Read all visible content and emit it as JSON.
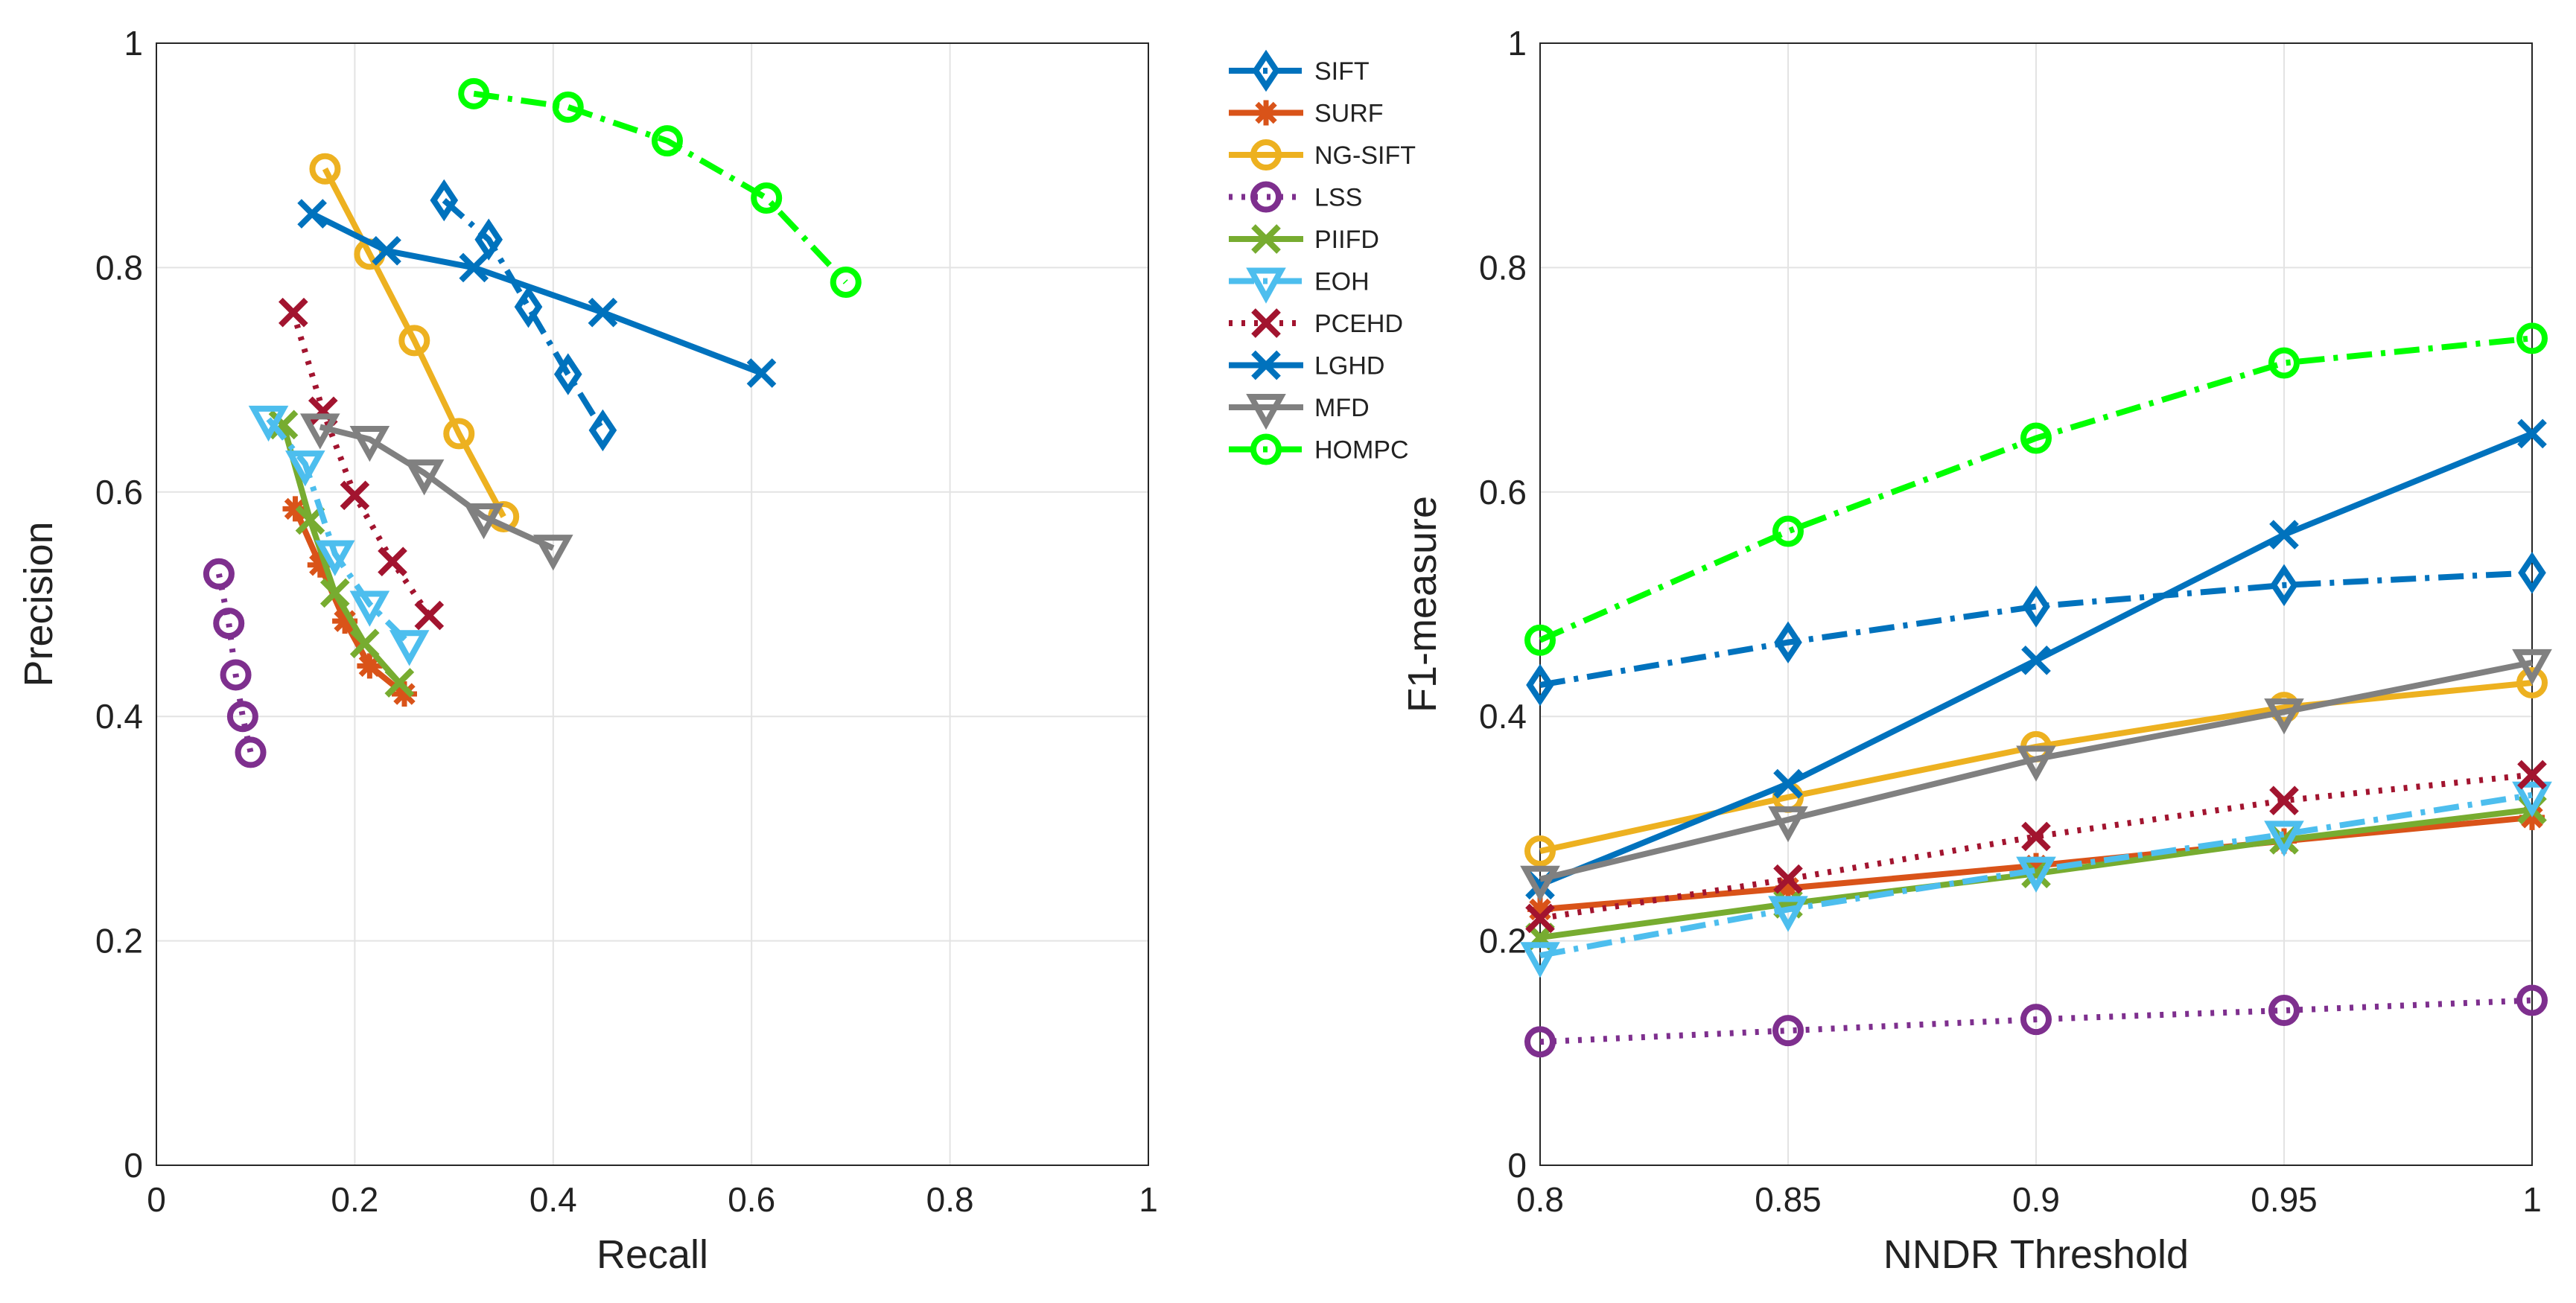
{
  "chart_data": [
    {
      "type": "line",
      "xlabel": "Recall",
      "ylabel": "Precision",
      "xlim": [
        0,
        1
      ],
      "ylim": [
        0,
        1
      ],
      "xticks": [
        "0",
        "0.2",
        "0.4",
        "0.6",
        "0.8",
        "1"
      ],
      "yticks": [
        "0",
        "0.2",
        "0.4",
        "0.6",
        "0.8",
        "1"
      ],
      "grid": true,
      "series": [
        {
          "name": "SIFT",
          "x": [
            0.29,
            0.335,
            0.375,
            0.415,
            0.45
          ],
          "y": [
            0.86,
            0.825,
            0.765,
            0.705,
            0.655
          ]
        },
        {
          "name": "SURF",
          "x": [
            0.14,
            0.165,
            0.19,
            0.215,
            0.25
          ],
          "y": [
            0.585,
            0.535,
            0.485,
            0.445,
            0.42
          ]
        },
        {
          "name": "NG-SIFT",
          "x": [
            0.17,
            0.215,
            0.26,
            0.305,
            0.35
          ],
          "y": [
            0.888,
            0.812,
            0.735,
            0.652,
            0.578
          ]
        },
        {
          "name": "LSS",
          "x": [
            0.063,
            0.073,
            0.08,
            0.087,
            0.095
          ],
          "y": [
            0.527,
            0.483,
            0.437,
            0.4,
            0.368
          ]
        },
        {
          "name": "PIIFD",
          "x": [
            0.128,
            0.155,
            0.18,
            0.21,
            0.245
          ],
          "y": [
            0.66,
            0.575,
            0.51,
            0.465,
            0.43
          ]
        },
        {
          "name": "EOH",
          "x": [
            0.113,
            0.15,
            0.18,
            0.215,
            0.255
          ],
          "y": [
            0.665,
            0.625,
            0.545,
            0.5,
            0.465
          ]
        },
        {
          "name": "PCEHD",
          "x": [
            0.138,
            0.168,
            0.2,
            0.238,
            0.275
          ],
          "y": [
            0.76,
            0.672,
            0.597,
            0.538,
            0.49
          ]
        },
        {
          "name": "LGHD",
          "x": [
            0.157,
            0.232,
            0.32,
            0.45,
            0.61
          ],
          "y": [
            0.848,
            0.815,
            0.8,
            0.76,
            0.706
          ]
        },
        {
          "name": "MFD",
          "x": [
            0.165,
            0.215,
            0.27,
            0.33,
            0.4
          ],
          "y": [
            0.658,
            0.647,
            0.617,
            0.578,
            0.55
          ]
        },
        {
          "name": "HOMPC",
          "x": [
            0.32,
            0.415,
            0.515,
            0.615,
            0.695
          ],
          "y": [
            0.955,
            0.943,
            0.913,
            0.862,
            0.787
          ]
        }
      ]
    },
    {
      "type": "line",
      "xlabel": "NNDR Threshold",
      "ylabel": "F1-measure",
      "xlim": [
        0.8,
        1
      ],
      "ylim": [
        0,
        1
      ],
      "xticks": [
        "0.8",
        "0.85",
        "0.9",
        "0.95",
        "1"
      ],
      "yticks": [
        "0",
        "0.2",
        "0.4",
        "0.6",
        "0.8",
        "1"
      ],
      "grid": true,
      "series": [
        {
          "name": "SIFT",
          "x": [
            0.8,
            0.85,
            0.9,
            0.95,
            1.0
          ],
          "y": [
            0.428,
            0.466,
            0.498,
            0.517,
            0.528
          ]
        },
        {
          "name": "SURF",
          "x": [
            0.8,
            0.85,
            0.9,
            0.95,
            1.0
          ],
          "y": [
            0.228,
            0.247,
            0.267,
            0.289,
            0.31
          ]
        },
        {
          "name": "NG-SIFT",
          "x": [
            0.8,
            0.85,
            0.9,
            0.95,
            1.0
          ],
          "y": [
            0.28,
            0.328,
            0.373,
            0.408,
            0.43
          ]
        },
        {
          "name": "LSS",
          "x": [
            0.8,
            0.85,
            0.9,
            0.95,
            1.0
          ],
          "y": [
            0.11,
            0.12,
            0.13,
            0.138,
            0.147
          ]
        },
        {
          "name": "PIIFD",
          "x": [
            0.8,
            0.85,
            0.9,
            0.95,
            1.0
          ],
          "y": [
            0.203,
            0.233,
            0.26,
            0.29,
            0.317
          ]
        },
        {
          "name": "EOH",
          "x": [
            0.8,
            0.85,
            0.9,
            0.95,
            1.0
          ],
          "y": [
            0.187,
            0.228,
            0.263,
            0.295,
            0.33
          ]
        },
        {
          "name": "PCEHD",
          "x": [
            0.8,
            0.85,
            0.9,
            0.95,
            1.0
          ],
          "y": [
            0.22,
            0.255,
            0.293,
            0.325,
            0.348
          ]
        },
        {
          "name": "LGHD",
          "x": [
            0.8,
            0.85,
            0.9,
            0.95,
            1.0
          ],
          "y": [
            0.25,
            0.34,
            0.45,
            0.562,
            0.652
          ]
        },
        {
          "name": "MFD",
          "x": [
            0.8,
            0.85,
            0.9,
            0.95,
            1.0
          ],
          "y": [
            0.255,
            0.308,
            0.362,
            0.404,
            0.448
          ]
        },
        {
          "name": "HOMPC",
          "x": [
            0.8,
            0.85,
            0.9,
            0.95,
            1.0
          ],
          "y": [
            0.468,
            0.565,
            0.648,
            0.715,
            0.737
          ]
        }
      ]
    }
  ],
  "legend": {
    "location": "between-plots",
    "entries": [
      "SIFT",
      "SURF",
      "NG-SIFT",
      "LSS",
      "PIIFD",
      "EOH",
      "PCEHD",
      "LGHD",
      "MFD",
      "HOMPC"
    ]
  },
  "styles": {
    "SIFT": {
      "color": "#0072BD",
      "dash": "dashdot",
      "marker": "diamond"
    },
    "SURF": {
      "color": "#D95319",
      "dash": "solid",
      "marker": "asterisk"
    },
    "NG-SIFT": {
      "color": "#EDB120",
      "dash": "solid",
      "marker": "circle"
    },
    "LSS": {
      "color": "#7E2F8E",
      "dash": "dotted",
      "marker": "circle"
    },
    "PIIFD": {
      "color": "#77AC30",
      "dash": "solid",
      "marker": "x"
    },
    "EOH": {
      "color": "#4DBEEE",
      "dash": "dashdot",
      "marker": "triangle-down"
    },
    "PCEHD": {
      "color": "#A2142F",
      "dash": "dotted",
      "marker": "x"
    },
    "LGHD": {
      "color": "#0072BD",
      "dash": "solid",
      "marker": "x"
    },
    "MFD": {
      "color": "#808080",
      "dash": "solid",
      "marker": "triangle-down"
    },
    "HOMPC": {
      "color": "#00FF00",
      "dash": "dashdot",
      "marker": "circle"
    }
  }
}
